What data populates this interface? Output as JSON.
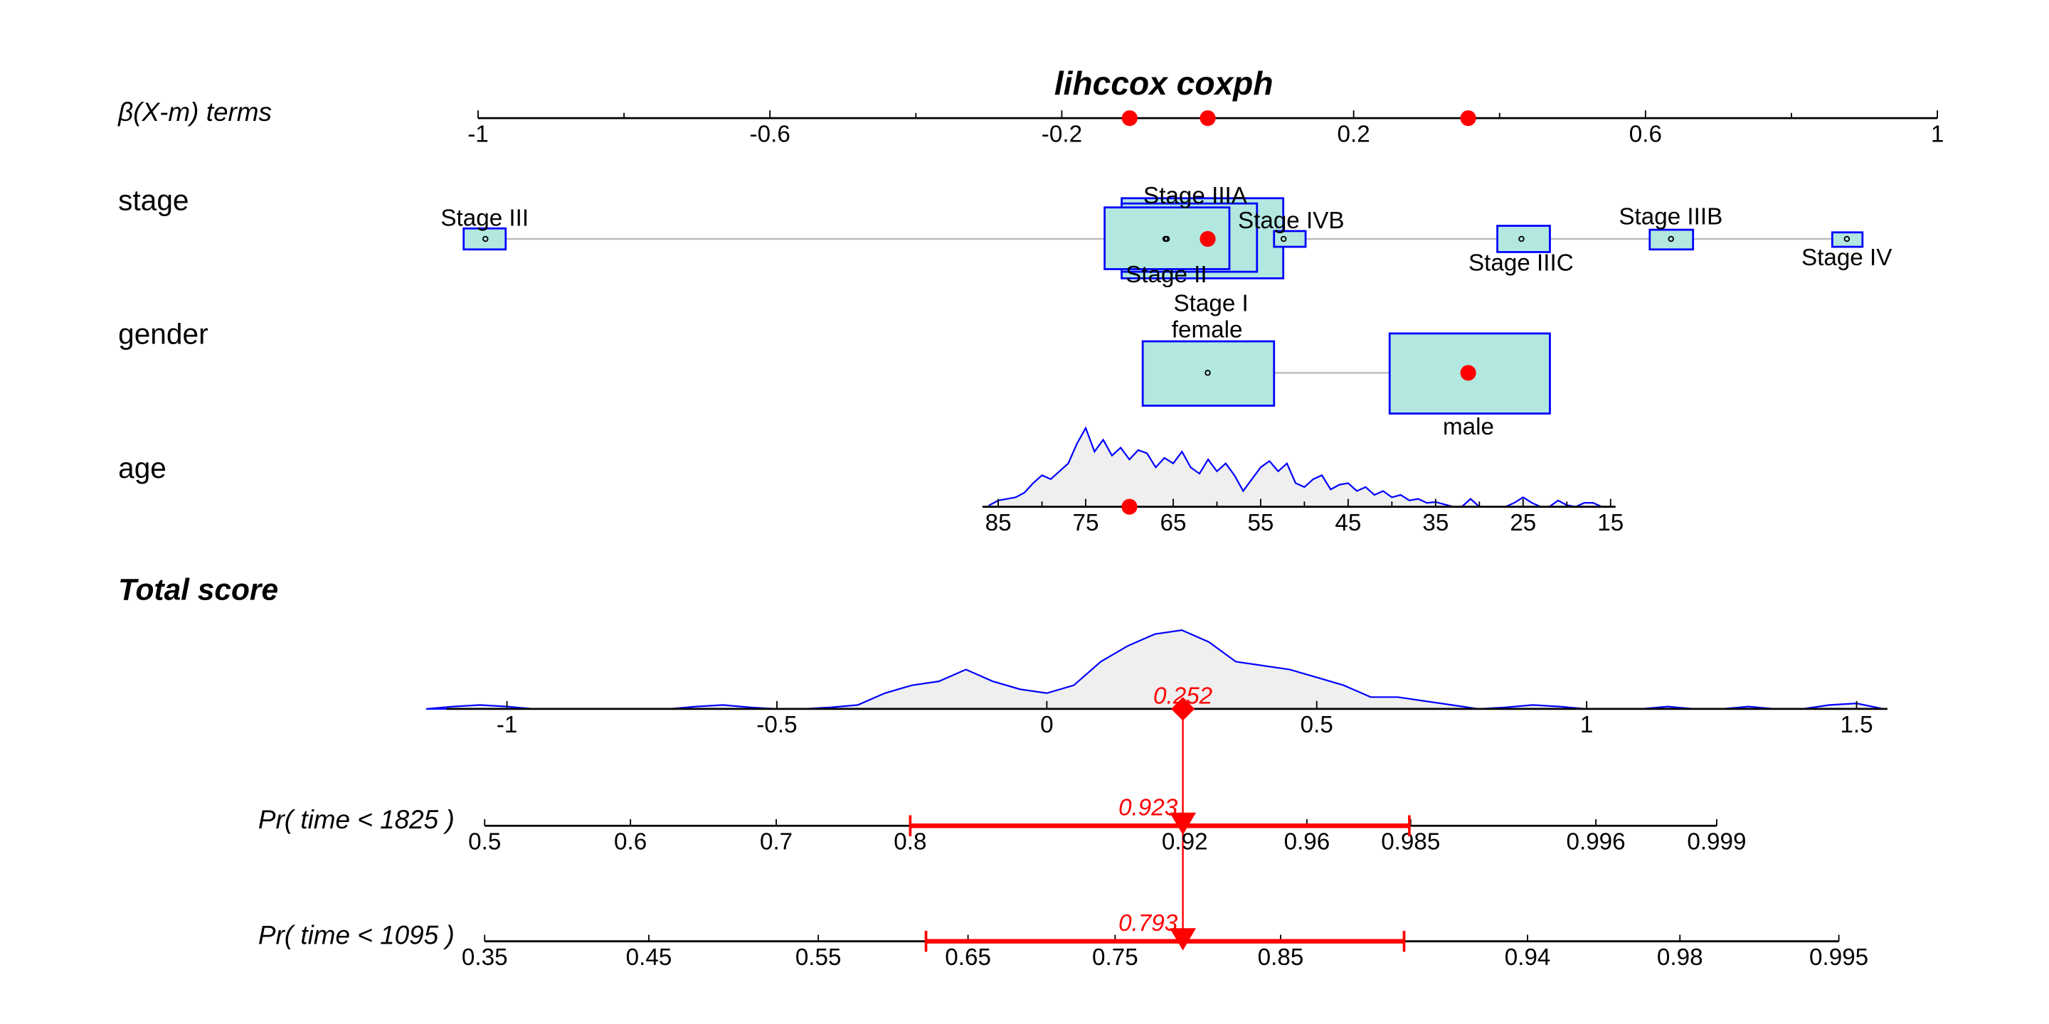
{
  "chart_data": {
    "type": "nomogram",
    "title": "lihccox coxph",
    "header_label": "β(X-m) terms",
    "colors": {
      "box_fill": "#b2e8e0",
      "box_stroke": "#0000ff",
      "selected": "#ff0000",
      "density_fill": "#efefef",
      "density_stroke": "#0000ff",
      "connector": "#bbbbbb"
    },
    "beta_axis": {
      "ticks": [
        "-1",
        "-0.6",
        "-0.2",
        "0.2",
        "0.6",
        "1"
      ],
      "tick_values": [
        -1,
        -0.6,
        -0.2,
        0.2,
        0.6,
        1
      ],
      "minor": [
        -0.8,
        -0.4,
        0,
        0.4,
        0.8
      ],
      "range": [
        -1,
        1
      ],
      "selected_points": [
        -0.107,
        0.0,
        0.357
      ]
    },
    "stage": {
      "label": "stage",
      "levels": [
        {
          "name": "Stage III",
          "beta": -0.99,
          "label_pos": "above"
        },
        {
          "name": "Stage IIIA",
          "beta": -0.058,
          "label_pos": "above"
        },
        {
          "name": "Stage II",
          "beta": -0.056,
          "label_pos": "below"
        },
        {
          "name": "Stage I",
          "beta": 0.0,
          "label_pos": "below",
          "selected": true
        },
        {
          "name": "Stage IVB",
          "beta": 0.104,
          "label_pos": "above"
        },
        {
          "name": "Stage IIIC",
          "beta": 0.43,
          "label_pos": "below"
        },
        {
          "name": "Stage IIIB",
          "beta": 0.635,
          "label_pos": "above"
        },
        {
          "name": "Stage IV",
          "beta": 0.876,
          "label_pos": "below"
        }
      ]
    },
    "gender": {
      "label": "gender",
      "levels": [
        {
          "name": "female",
          "beta": 0.0,
          "label_pos": "above"
        },
        {
          "name": "male",
          "beta": 0.357,
          "label_pos": "below",
          "selected": true
        }
      ]
    },
    "age": {
      "label": "age",
      "ticks": [
        "85",
        "75",
        "65",
        "55",
        "45",
        "35",
        "25",
        "15"
      ],
      "tick_values": [
        85,
        75,
        65,
        55,
        45,
        35,
        25,
        15
      ],
      "selected": 70,
      "density_x": [
        86,
        85,
        84,
        83,
        82,
        81,
        80,
        79,
        78,
        77,
        76,
        75,
        74,
        73,
        72,
        71,
        70,
        69,
        68,
        67,
        66,
        65,
        64,
        63,
        62,
        61,
        60,
        59,
        58,
        57,
        56,
        55,
        54,
        53,
        52,
        51,
        50,
        49,
        48,
        47,
        46,
        45,
        44,
        43,
        42,
        41,
        40,
        39,
        38,
        37,
        36,
        35,
        34,
        33,
        32,
        31,
        30,
        29,
        28,
        27,
        26,
        25,
        24,
        23,
        22,
        21,
        20,
        19,
        18,
        17,
        16,
        15
      ],
      "density_y": [
        0.02,
        0.08,
        0.1,
        0.12,
        0.18,
        0.3,
        0.4,
        0.35,
        0.45,
        0.55,
        0.8,
        1.0,
        0.7,
        0.85,
        0.65,
        0.75,
        0.6,
        0.72,
        0.68,
        0.5,
        0.62,
        0.55,
        0.7,
        0.5,
        0.42,
        0.6,
        0.45,
        0.55,
        0.4,
        0.2,
        0.35,
        0.5,
        0.58,
        0.45,
        0.55,
        0.3,
        0.25,
        0.35,
        0.4,
        0.22,
        0.28,
        0.3,
        0.2,
        0.25,
        0.15,
        0.2,
        0.12,
        0.15,
        0.08,
        0.1,
        0.05,
        0.06,
        0.03,
        0,
        0,
        0.1,
        0,
        0,
        0,
        0,
        0.05,
        0.12,
        0.05,
        0,
        0,
        0.08,
        0.02,
        0,
        0.05,
        0.05,
        0,
        0
      ]
    },
    "total_score": {
      "label": "Total score",
      "ticks": [
        "-1",
        "-0.5",
        "0",
        "0.5",
        "1",
        "1.5"
      ],
      "tick_values": [
        -1,
        -0.5,
        0,
        0.5,
        1,
        1.5
      ],
      "value": 0.252,
      "value_label": "0.252",
      "density_x": [
        -1.15,
        -1.1,
        -1.05,
        -1.0,
        -0.95,
        -0.9,
        -0.85,
        -0.8,
        -0.75,
        -0.7,
        -0.65,
        -0.6,
        -0.55,
        -0.5,
        -0.45,
        -0.4,
        -0.35,
        -0.3,
        -0.25,
        -0.2,
        -0.15,
        -0.1,
        -0.05,
        0,
        0.05,
        0.1,
        0.15,
        0.2,
        0.25,
        0.3,
        0.35,
        0.4,
        0.45,
        0.5,
        0.55,
        0.6,
        0.65,
        0.7,
        0.75,
        0.8,
        0.85,
        0.9,
        0.95,
        1.0,
        1.05,
        1.1,
        1.15,
        1.2,
        1.25,
        1.3,
        1.35,
        1.4,
        1.45,
        1.5,
        1.55
      ],
      "density_y": [
        0,
        0.03,
        0.05,
        0.03,
        0,
        0,
        0,
        0,
        0,
        0,
        0.03,
        0.05,
        0.02,
        0,
        0,
        0.02,
        0.05,
        0.2,
        0.3,
        0.35,
        0.5,
        0.35,
        0.25,
        0.2,
        0.3,
        0.6,
        0.8,
        0.95,
        1.0,
        0.85,
        0.6,
        0.55,
        0.5,
        0.4,
        0.3,
        0.15,
        0.15,
        0.1,
        0.05,
        0,
        0.02,
        0.05,
        0.03,
        0,
        0,
        0,
        0.03,
        0,
        0,
        0.03,
        0,
        0,
        0.05,
        0.07,
        0
      ]
    },
    "probabilities": [
      {
        "label": "Pr( time < 1825 )",
        "ticks": [
          "0.5",
          "0.6",
          "0.7",
          "0.8",
          "0.92",
          "0.96",
          "0.985",
          "0.996",
          "0.999"
        ],
        "value": 0.923,
        "value_label": "0.923",
        "ci_low_tick": "0.8",
        "ci_high_tick": "0.985"
      },
      {
        "label": "Pr( time < 1095 )",
        "ticks": [
          "0.35",
          "0.45",
          "0.55",
          "0.65",
          "0.75",
          "0.85",
          "0.94",
          "0.98",
          "0.995"
        ],
        "value": 0.793,
        "value_label": "0.793",
        "ci_low_tick": "0.65",
        "ci_high_tick": "0.9"
      }
    ]
  }
}
